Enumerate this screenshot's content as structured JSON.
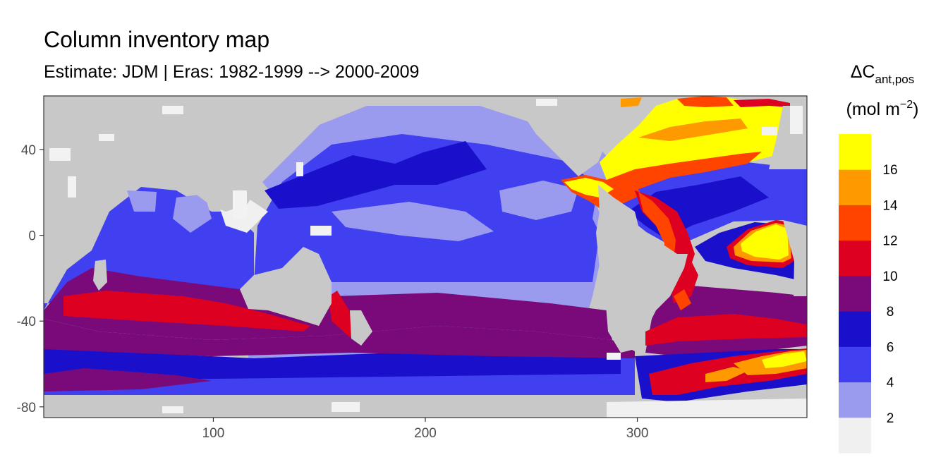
{
  "chart_title": "Column inventory map",
  "chart_subtitle": "Estimate: JDM  | Eras: 1982-1999 --> 2000-2009",
  "chart_data": {
    "type": "heatmap",
    "title": "Column inventory map",
    "subtitle": "Estimate: JDM  | Eras: 1982-1999 --> 2000-2009",
    "xlabel": "",
    "ylabel": "",
    "x_ticks": [
      100,
      200,
      300
    ],
    "y_ticks": [
      40,
      0,
      -40,
      -80
    ],
    "xlim": [
      20,
      380
    ],
    "ylim": [
      -85,
      65
    ],
    "legend": {
      "title_main": "ΔC",
      "title_subscript": "ant,pos",
      "units_prefix": "(mol m",
      "units_superscript": "−2",
      "units_suffix": ")",
      "position": "right",
      "break_labels": [
        "2",
        "4",
        "6",
        "8",
        "10",
        "12",
        "14",
        "16"
      ],
      "bins": [
        {
          "range": "<2",
          "color": "#f0f0f0"
        },
        {
          "range": "2-4",
          "color": "#9a9aef"
        },
        {
          "range": "4-6",
          "color": "#4040f0"
        },
        {
          "range": "6-8",
          "color": "#1a10cc"
        },
        {
          "range": "8-10",
          "color": "#7a0a7a"
        },
        {
          "range": "10-12",
          "color": "#dd0020"
        },
        {
          "range": "12-14",
          "color": "#ff4400"
        },
        {
          "range": "14-16",
          "color": "#ff9900"
        },
        {
          "range": ">16",
          "color": "#ffff00"
        }
      ]
    },
    "land_color": "#c8c8c8",
    "grid": false
  }
}
